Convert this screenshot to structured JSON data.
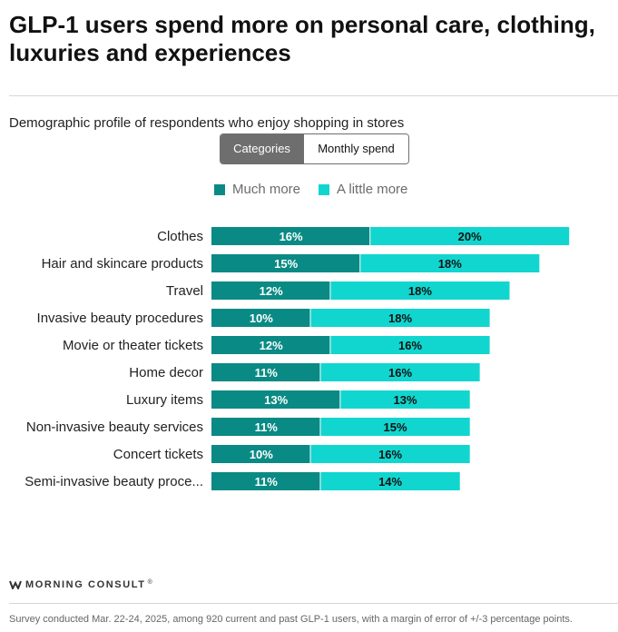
{
  "title": "GLP-1 users spend more on personal care, clothing, luxuries and experiences",
  "subtitle": "Demographic profile of respondents who enjoy shopping in stores",
  "toggle": {
    "active": "Categories",
    "inactive": "Monthly spend"
  },
  "legend": [
    {
      "label": "Much more",
      "color": "#0a8a84"
    },
    {
      "label": "A little more",
      "color": "#11d6cf"
    }
  ],
  "brand": {
    "name": "MORNING CONSULT",
    "mark": "®"
  },
  "footnote": "Survey conducted Mar. 22-24, 2025, among 920 current and past GLP-1 users, with a margin of error of +/-3 percentage points.",
  "chart_data": {
    "type": "bar",
    "orientation": "horizontal",
    "stacked": true,
    "categories": [
      "Clothes",
      "Hair and skincare products",
      "Travel",
      "Invasive beauty procedures",
      "Movie or theater tickets",
      "Home decor",
      "Luxury items",
      "Non-invasive beauty services",
      "Concert tickets",
      "Semi-invasive beauty proce..."
    ],
    "series": [
      {
        "name": "Much more",
        "color": "#0a8a84",
        "values": [
          16,
          15,
          12,
          10,
          12,
          11,
          13,
          11,
          10,
          11
        ]
      },
      {
        "name": "A little more",
        "color": "#11d6cf",
        "values": [
          20,
          18,
          18,
          18,
          16,
          16,
          13,
          15,
          16,
          14
        ]
      }
    ],
    "value_suffix": "%",
    "xlim": [
      0,
      40
    ],
    "grid": false,
    "legend_position": "top"
  }
}
